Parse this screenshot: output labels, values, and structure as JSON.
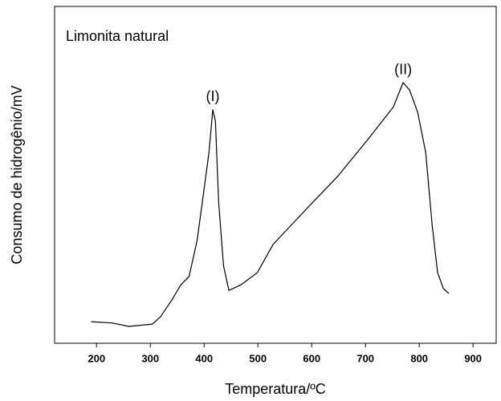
{
  "chart_data": {
    "type": "line",
    "xlabel": "Temperatura/ºC",
    "ylabel": "Consumo de hidrogênio/mV",
    "x": [
      190,
      230,
      260,
      304,
      319,
      339,
      357,
      372,
      387,
      401,
      409,
      416,
      421,
      427,
      436,
      446,
      469,
      499,
      528,
      588,
      648,
      707,
      752,
      770,
      782,
      797,
      812,
      824,
      834,
      845,
      855
    ],
    "series": [
      {
        "name": "Limonita natural",
        "color": "#000000",
        "values": [
          6.4,
          6.0,
          5.0,
          5.7,
          7.9,
          12.6,
          17.4,
          19.8,
          30.5,
          47,
          56.7,
          69.3,
          66,
          42,
          23,
          15.7,
          17.4,
          21,
          29.3,
          39.5,
          49.5,
          61,
          70.2,
          77.4,
          75.2,
          68.6,
          56.7,
          35,
          21,
          16.2,
          14.8
        ]
      }
    ],
    "annotations": [
      {
        "text": "(I)",
        "x": 416,
        "y": 73
      },
      {
        "text": "(II)",
        "x": 770,
        "y": 81
      }
    ],
    "xlim": [
      122,
      943
    ],
    "xticks": [
      200,
      300,
      400,
      500,
      600,
      700,
      800,
      900
    ],
    "ylim": [
      0,
      100
    ],
    "grid": false
  }
}
